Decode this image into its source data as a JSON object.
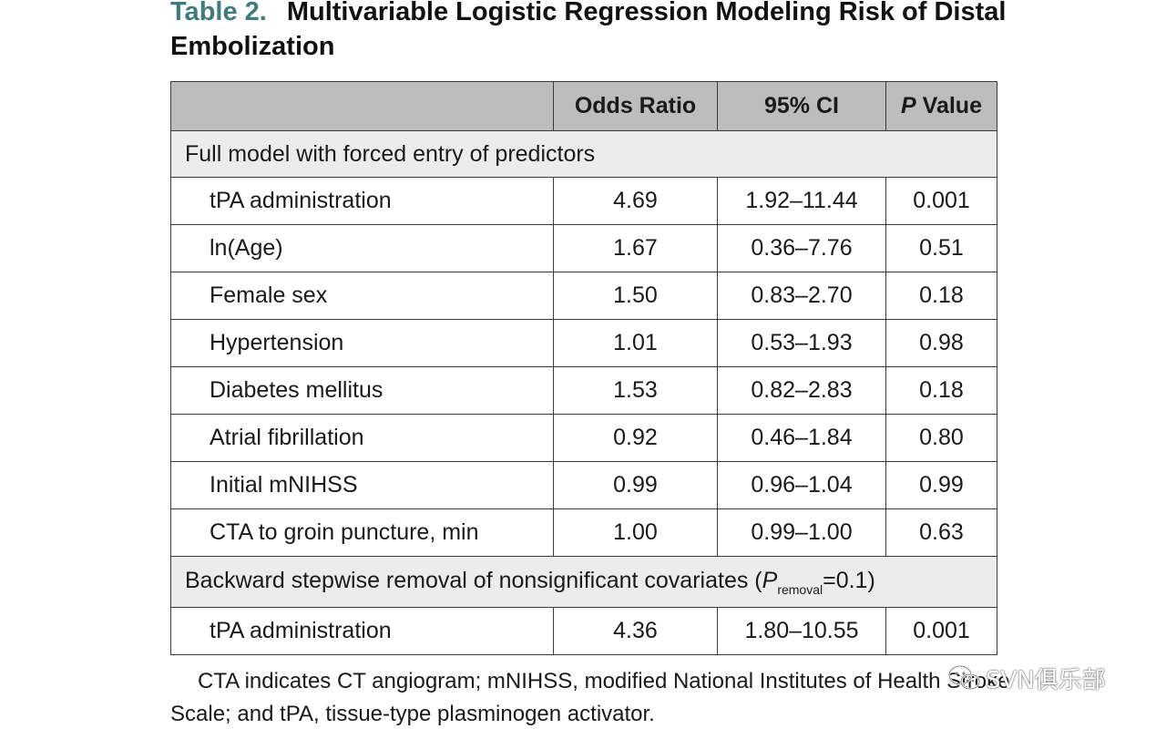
{
  "title": {
    "label": "Table 2.",
    "text": "Multivariable Logistic Regression Modeling Risk of Distal Embolization"
  },
  "table": {
    "columns": [
      "Odds Ratio",
      "95% CI",
      "Value"
    ],
    "p_italic": "P",
    "sections": [
      {
        "heading": "Full model with forced entry of predictors",
        "rows": [
          {
            "label": "tPA administration",
            "or": "4.69",
            "ci": "1.92–11.44",
            "p": "0.001"
          },
          {
            "label": "ln(Age)",
            "or": "1.67",
            "ci": "0.36–7.76",
            "p": "0.51"
          },
          {
            "label": "Female sex",
            "or": "1.50",
            "ci": "0.83–2.70",
            "p": "0.18"
          },
          {
            "label": "Hypertension",
            "or": "1.01",
            "ci": "0.53–1.93",
            "p": "0.98"
          },
          {
            "label": "Diabetes mellitus",
            "or": "1.53",
            "ci": "0.82–2.83",
            "p": "0.18"
          },
          {
            "label": "Atrial fibrillation",
            "or": "0.92",
            "ci": "0.46–1.84",
            "p": "0.80"
          },
          {
            "label": "Initial mNIHSS",
            "or": "0.99",
            "ci": "0.96–1.04",
            "p": "0.99"
          },
          {
            "label": "CTA to groin puncture, min",
            "or": "1.00",
            "ci": "0.99–1.00",
            "p": "0.63"
          }
        ]
      },
      {
        "heading_prefix": "Backward stepwise removal of nonsignificant covariates (",
        "heading_p": "P",
        "heading_sub": "removal",
        "heading_suffix": "=0.1)",
        "rows": [
          {
            "label": "tPA administration",
            "or": "4.36",
            "ci": "1.80–10.55",
            "p": "0.001"
          }
        ]
      }
    ]
  },
  "footnote": "CTA indicates CT angiogram; mNIHSS, modified National Institutes of Health Stroke Scale; and tPA, tissue-type plasminogen activator.",
  "watermark": {
    "text": "SVN俱乐部",
    "icon": "wechat-icon"
  }
}
